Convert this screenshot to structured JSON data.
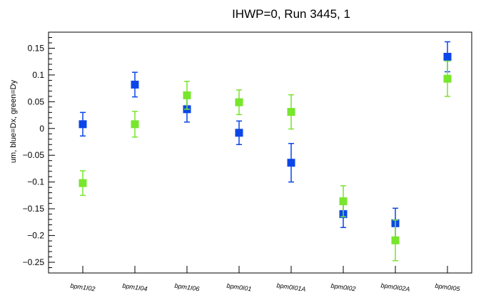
{
  "chart_data": {
    "type": "scatter",
    "title": "IHWP=0, Run 3445, 1",
    "xlabel": "",
    "ylabel": "um, blue=Dx, green=Dy",
    "categories": [
      "bpm1I02",
      "bpm1I04",
      "bpm1I06",
      "bpm0I01",
      "bpm0I01A",
      "bpm0I02",
      "bpm0I02A",
      "bpm0I05"
    ],
    "ylim": [
      -0.27,
      0.18
    ],
    "yticks": [
      0.15,
      0.1,
      0.05,
      0,
      -0.05,
      -0.1,
      -0.15,
      -0.2,
      -0.25
    ],
    "ytick_labels": [
      "0.15",
      "0.1",
      "0.05",
      "0",
      "−0.05",
      "−0.1",
      "−0.15",
      "−0.2",
      "−0.25"
    ],
    "grid": false,
    "series": [
      {
        "color": "#0b46e8",
        "values": [
          0.008,
          0.082,
          0.036,
          -0.008,
          -0.064,
          -0.16,
          -0.177,
          0.134
        ],
        "errors": [
          0.022,
          0.023,
          0.024,
          0.022,
          0.036,
          0.025,
          0.028,
          0.028
        ]
      },
      {
        "color": "#77e62c",
        "values": [
          -0.102,
          0.008,
          0.062,
          0.049,
          0.031,
          -0.136,
          -0.209,
          0.093
        ],
        "errors": [
          0.023,
          0.024,
          0.026,
          0.023,
          0.032,
          0.029,
          0.038,
          0.033
        ]
      }
    ]
  }
}
